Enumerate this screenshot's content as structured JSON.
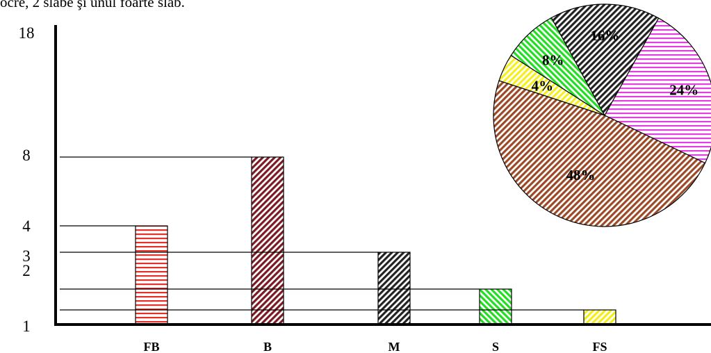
{
  "caption": "ocre, 2 slabe şi unul foarte slab.",
  "colors": {
    "FB": "#e8302a",
    "B": "#7a1a22",
    "M": "#222222",
    "S": "#22dd22",
    "FS": "#f2ee1a",
    "pie_magenta": "#e040e0",
    "pie_brown": "#9a4a26",
    "pie_yellow": "#f4f020",
    "pie_green": "#22dd22",
    "pie_black": "#222222"
  },
  "chart_data": [
    {
      "type": "bar",
      "categories": [
        "FB",
        "B",
        "M",
        "S",
        "FS"
      ],
      "values": [
        4,
        8,
        3,
        2,
        1
      ],
      "ytick_labels": [
        "1",
        "2",
        "3",
        "4",
        "8",
        "18"
      ],
      "title": "",
      "xlabel": "",
      "ylabel": "",
      "grid": false,
      "patterns": [
        "horizontal",
        "diagonal",
        "diagonal",
        "diagonal-reverse",
        "diagonal"
      ]
    },
    {
      "type": "pie",
      "slices": [
        {
          "label": "24%",
          "value": 24,
          "color": "pie_magenta",
          "pattern": "horizontal"
        },
        {
          "label": "48%",
          "value": 48,
          "color": "pie_brown",
          "pattern": "diagonal"
        },
        {
          "label": "4%",
          "value": 4,
          "color": "pie_yellow",
          "pattern": "diagonal"
        },
        {
          "label": "8%",
          "value": 8,
          "color": "pie_green",
          "pattern": "diagonal-reverse"
        },
        {
          "label": "16%",
          "value": 16,
          "color": "pie_black",
          "pattern": "diagonal"
        }
      ]
    }
  ]
}
